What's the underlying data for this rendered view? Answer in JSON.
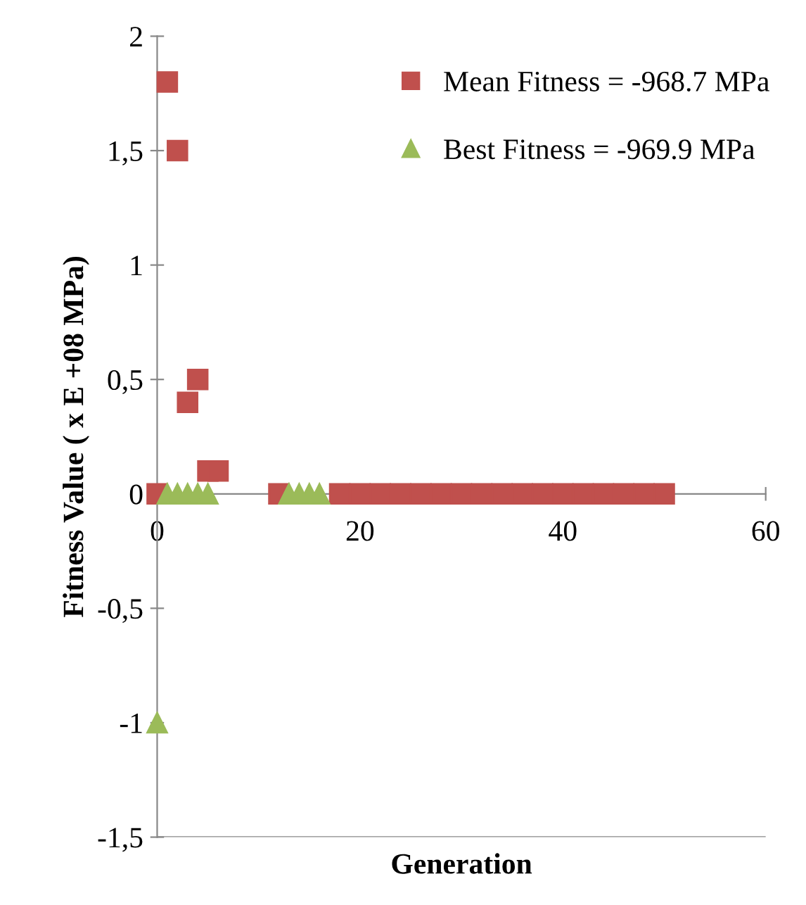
{
  "chart_data": {
    "type": "scatter",
    "xlabel": "Generation",
    "ylabel": "Fitness Value ( x E +08 MPa)",
    "xlim": [
      0,
      60
    ],
    "xticks": [
      0,
      20,
      40,
      60
    ],
    "ylim": [
      -1.5,
      2
    ],
    "yticks": [
      {
        "value": -1.5,
        "label": "-1,5"
      },
      -1,
      {
        "value": -0.5,
        "label": "-0,5"
      },
      0,
      {
        "value": 0.5,
        "label": "0,5"
      },
      1,
      {
        "value": 1.5,
        "label": "1,5"
      },
      2
    ],
    "legend": "top right",
    "grid": false,
    "series": [
      {
        "name": "Mean Fitness = -968.7 MPa",
        "color": "#c0504d",
        "marker": "square",
        "x": [
          0,
          1,
          2,
          3,
          4,
          5,
          6,
          12,
          18,
          20,
          22,
          24,
          26,
          28,
          30,
          32,
          34,
          36,
          38,
          40,
          42,
          44,
          46,
          48,
          50
        ],
        "values": [
          0,
          1.8,
          1.5,
          0.4,
          0.5,
          0.1,
          0.1,
          0,
          0,
          0,
          0,
          0,
          0,
          0,
          0,
          0,
          0,
          0,
          0,
          0,
          0,
          0,
          0,
          0,
          0
        ]
      },
      {
        "name": "Best Fitness = -969.9 MPa",
        "color": "#9bbb59",
        "marker": "triangle",
        "x": [
          0,
          1,
          2,
          3,
          4,
          5,
          13,
          14,
          15,
          16
        ],
        "values": [
          -1,
          0,
          0,
          0,
          0,
          0,
          0,
          0,
          0,
          0
        ]
      }
    ]
  }
}
